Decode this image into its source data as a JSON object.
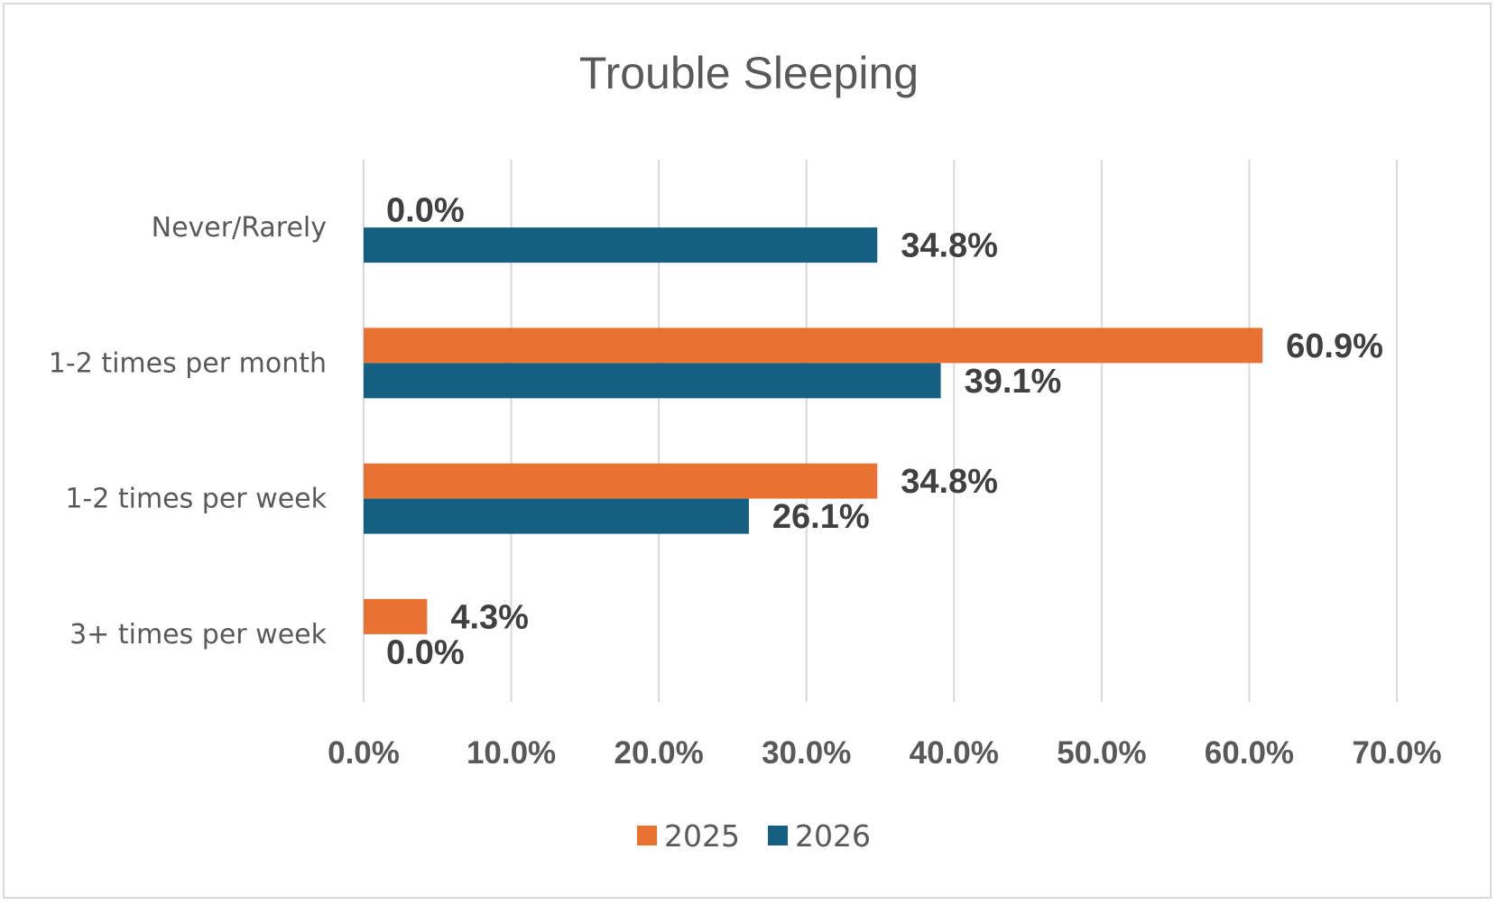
{
  "chart_data": {
    "type": "bar",
    "orientation": "horizontal",
    "title": "Trouble Sleeping",
    "categories": [
      "Never/Rarely",
      "1-2 times per month",
      "1-2 times per week",
      "3+ times per week"
    ],
    "series": [
      {
        "name": "2025",
        "color": "#e97132",
        "values": [
          0.0,
          60.9,
          34.8,
          4.3
        ],
        "labels": [
          "0.0%",
          "60.9%",
          "34.8%",
          "4.3%"
        ]
      },
      {
        "name": "2026",
        "color": "#156082",
        "values": [
          34.8,
          39.1,
          26.1,
          0.0
        ],
        "labels": [
          "34.8%",
          "39.1%",
          "26.1%",
          "0.0%"
        ]
      }
    ],
    "xlim": [
      0,
      70
    ],
    "xticks": [
      0,
      10,
      20,
      30,
      40,
      50,
      60,
      70
    ],
    "xtick_labels": [
      "0.0%",
      "10.0%",
      "20.0%",
      "30.0%",
      "40.0%",
      "50.0%",
      "60.0%",
      "70.0%"
    ],
    "grid": true,
    "legend_position": "bottom"
  }
}
